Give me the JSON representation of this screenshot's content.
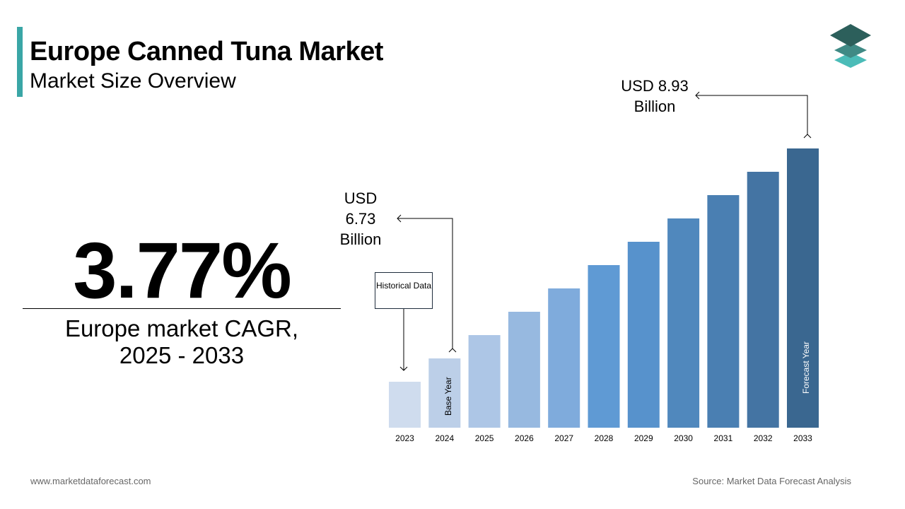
{
  "header": {
    "title": "Europe Canned Tuna Market",
    "subtitle": "Market Size Overview"
  },
  "kpi": {
    "value": "3.77%",
    "label_line1": "Europe market CAGR,",
    "label_line2": "2025 - 2033"
  },
  "footer": {
    "website": "www.marketdataforecast.com",
    "source": "Source: Market Data Forecast Analysis"
  },
  "colors": {
    "accent": "#3aa6a6",
    "logo": [
      "#2c5f5b",
      "#3f8a85",
      "#4bbcb8"
    ]
  },
  "chart_data": {
    "type": "bar",
    "categories": [
      "2023",
      "2024",
      "2025",
      "2026",
      "2027",
      "2028",
      "2029",
      "2030",
      "2031",
      "2032",
      "2033"
    ],
    "colors": [
      "#cfdcee",
      "#bccfe8",
      "#adc6e6",
      "#97b9e0",
      "#7fabdc",
      "#5f9ad4",
      "#5792cc",
      "#5088bd",
      "#4a7fb2",
      "#4474a3",
      "#3a6790"
    ],
    "annotations": {
      "start": {
        "year": "2024",
        "line1": "USD",
        "line2": "6.73",
        "line3": "Billion"
      },
      "end": {
        "year": "2033",
        "line1": "USD 8.93",
        "line2": "Billion"
      },
      "historical": "Historical Data",
      "base_year": "Base Year",
      "forecast_year": "Forecast Year"
    }
  }
}
